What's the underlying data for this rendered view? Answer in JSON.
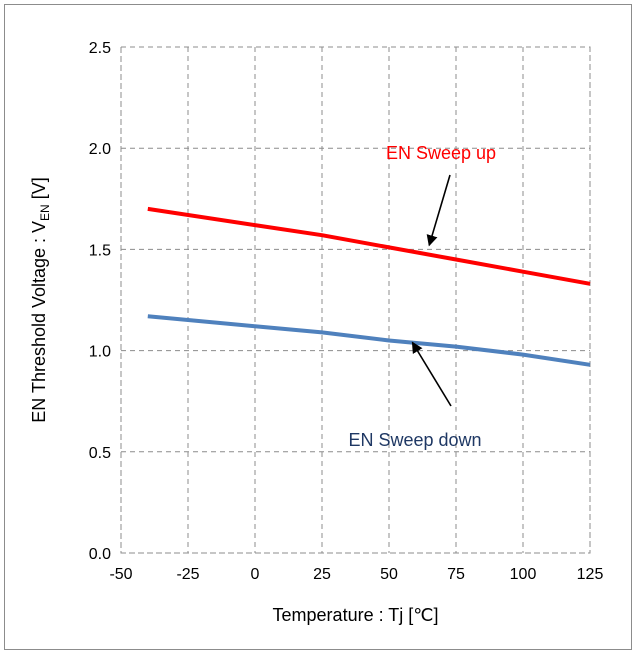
{
  "chart_data": {
    "type": "line",
    "title": "",
    "xlabel": "Temperature : Tj [℃]",
    "ylabel_main": "EN  Threshold Voltage : V",
    "ylabel_sub": "EN",
    "ylabel_unit": " [V]",
    "xlim": [
      -50,
      125
    ],
    "ylim": [
      0,
      2.5
    ],
    "xticks": [
      -50,
      -25,
      0,
      25,
      50,
      75,
      100,
      125
    ],
    "yticks": [
      0.0,
      0.5,
      1.0,
      1.5,
      2.0,
      2.5
    ],
    "grid": true,
    "series": [
      {
        "name": "EN Sweep up",
        "color": "#ff0000",
        "x": [
          -40,
          0,
          25,
          50,
          75,
          100,
          125
        ],
        "y": [
          1.7,
          1.62,
          1.57,
          1.51,
          1.45,
          1.39,
          1.33
        ]
      },
      {
        "name": "EN Sweep down",
        "color": "#4f81bd",
        "x": [
          -40,
          0,
          25,
          50,
          75,
          100,
          125
        ],
        "y": [
          1.17,
          1.12,
          1.09,
          1.05,
          1.02,
          0.98,
          0.93
        ]
      }
    ],
    "annotations": [
      {
        "text": "EN Sweep up",
        "color": "#ff0000",
        "arrow_to": [
          65,
          1.53
        ]
      },
      {
        "text": "EN Sweep down",
        "color": "#1f3864",
        "arrow_to": [
          58,
          1.05
        ]
      }
    ]
  }
}
